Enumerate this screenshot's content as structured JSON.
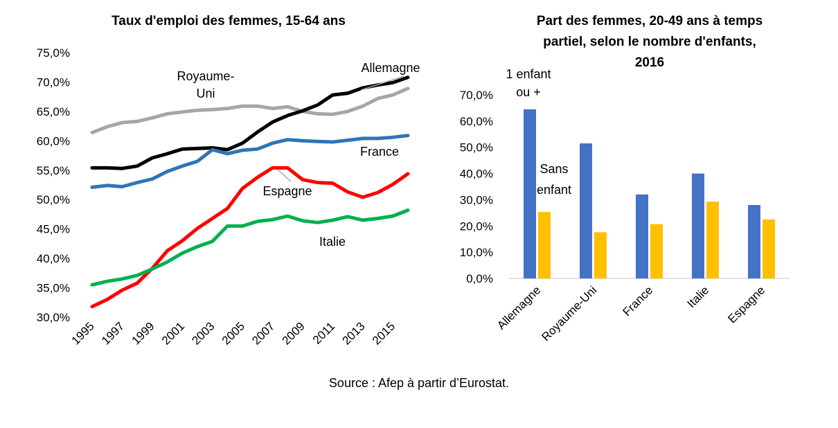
{
  "source": "Source : Afep à partir d’Eurostat.",
  "chart_data": [
    {
      "type": "line",
      "title": "Taux d'emploi des femmes, 15-64 ans",
      "x": [
        1995,
        1996,
        1997,
        1998,
        1999,
        2000,
        2001,
        2002,
        2003,
        2004,
        2005,
        2006,
        2007,
        2008,
        2009,
        2010,
        2011,
        2012,
        2013,
        2014,
        2015,
        2016
      ],
      "xticks": [
        "1995",
        "1997",
        "1999",
        "2001",
        "2003",
        "2005",
        "2007",
        "2009",
        "2011",
        "2013",
        "2015"
      ],
      "ylim": [
        30,
        75
      ],
      "yticks": [
        "30,0%",
        "35,0%",
        "40,0%",
        "45,0%",
        "50,0%",
        "55,0%",
        "60,0%",
        "65,0%",
        "70,0%",
        "75,0%"
      ],
      "grid": false,
      "series": [
        {
          "name": "Royaume-Uni",
          "color": "#a6a6a6",
          "values": [
            61.4,
            62.4,
            63.1,
            63.3,
            63.9,
            64.6,
            64.9,
            65.2,
            65.3,
            65.5,
            65.9,
            65.9,
            65.5,
            65.8,
            65.0,
            64.6,
            64.5,
            65.0,
            65.9,
            67.2,
            67.8,
            68.9
          ],
          "label_lines": [
            "Royaume-",
            "Uni"
          ]
        },
        {
          "name": "Allemagne",
          "color": "#000000",
          "values": [
            55.4,
            55.4,
            55.3,
            55.7,
            57.1,
            57.8,
            58.6,
            58.7,
            58.8,
            58.5,
            59.6,
            61.5,
            63.2,
            64.3,
            65.1,
            66.1,
            67.8,
            68.1,
            69.0,
            69.5,
            69.9,
            70.8
          ],
          "label_lines": [
            "Allemagne"
          ]
        },
        {
          "name": "France",
          "color": "#2e75b6",
          "values": [
            52.1,
            52.4,
            52.2,
            52.9,
            53.5,
            54.8,
            55.7,
            56.5,
            58.5,
            57.8,
            58.4,
            58.6,
            59.6,
            60.2,
            60.0,
            59.9,
            59.8,
            60.1,
            60.4,
            60.4,
            60.6,
            60.9
          ],
          "label_lines": [
            "France"
          ]
        },
        {
          "name": "Espagne",
          "color": "#ff0000",
          "values": [
            31.8,
            33.0,
            34.6,
            35.8,
            38.3,
            41.3,
            43.0,
            45.1,
            46.8,
            48.5,
            51.9,
            53.8,
            55.4,
            55.4,
            53.4,
            52.9,
            52.8,
            51.3,
            50.4,
            51.2,
            52.6,
            54.4
          ],
          "label_lines": [
            "Espagne"
          ]
        },
        {
          "name": "Italie",
          "color": "#00b050",
          "values": [
            35.5,
            36.1,
            36.5,
            37.1,
            38.2,
            39.4,
            40.9,
            42.0,
            42.9,
            45.5,
            45.5,
            46.3,
            46.6,
            47.2,
            46.4,
            46.1,
            46.5,
            47.1,
            46.5,
            46.8,
            47.2,
            48.2
          ],
          "label_lines": [
            "Italie"
          ]
        }
      ]
    },
    {
      "type": "bar",
      "title_lines": [
        "Part des femmes, 20-49 ans à temps",
        "partiel, selon le nombre d'enfants,",
        "2016"
      ],
      "categories": [
        "Allemagne",
        "Royaume-Uni",
        "France",
        "Italie",
        "Espagne"
      ],
      "ylim": [
        0,
        70
      ],
      "yticks": [
        "0,0%",
        "10,0%",
        "20,0%",
        "30,0%",
        "40,0%",
        "50,0%",
        "60,0%",
        "70,0%"
      ],
      "grid": false,
      "series": [
        {
          "name": "1 enfant ou +",
          "label_lines": [
            "1 enfant",
            "ou +"
          ],
          "color": "#4472c4",
          "values": [
            64.5,
            51.5,
            32.0,
            40.0,
            28.0
          ]
        },
        {
          "name": "Sans enfant",
          "label_lines": [
            "Sans",
            "enfant"
          ],
          "color": "#ffc000",
          "values": [
            25.3,
            17.6,
            20.7,
            29.3,
            22.5
          ]
        }
      ]
    }
  ]
}
